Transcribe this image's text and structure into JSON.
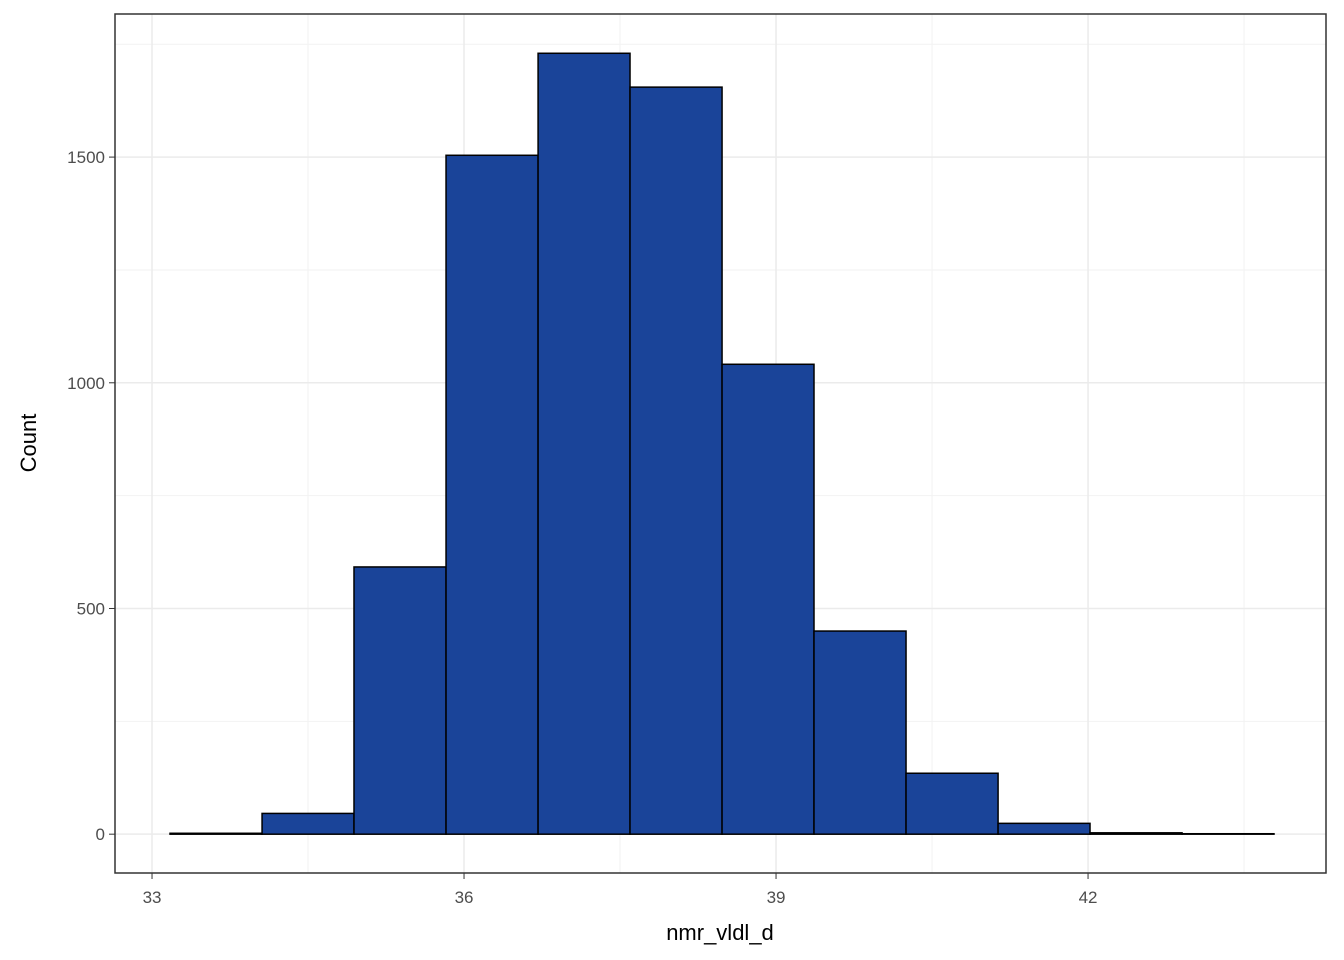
{
  "chart_data": {
    "type": "histogram",
    "x_label": "nmr_vldl_d",
    "y_label": "Count",
    "bins": [
      33.173,
      34.058,
      34.942,
      35.827,
      36.712,
      37.596,
      38.481,
      39.365,
      40.25,
      41.135,
      42.019,
      42.904,
      43.788
    ],
    "counts": [
      2,
      46,
      592,
      1504,
      1730,
      1655,
      1041,
      450,
      135,
      24,
      3,
      1
    ],
    "color": "#1a4499",
    "edge_color": "#000000",
    "xlim": [
      32.644,
      44.288
    ],
    "ylim": [
      -86,
      1817
    ],
    "xticks": [
      33,
      36,
      39,
      42
    ],
    "yticks": [
      0,
      500,
      1000,
      1500
    ],
    "x_minor_ticks": [
      34.5,
      37.5,
      40.5,
      43.5
    ],
    "y_minor_ticks": [
      250,
      750,
      1250,
      1750
    ],
    "grid": true
  }
}
